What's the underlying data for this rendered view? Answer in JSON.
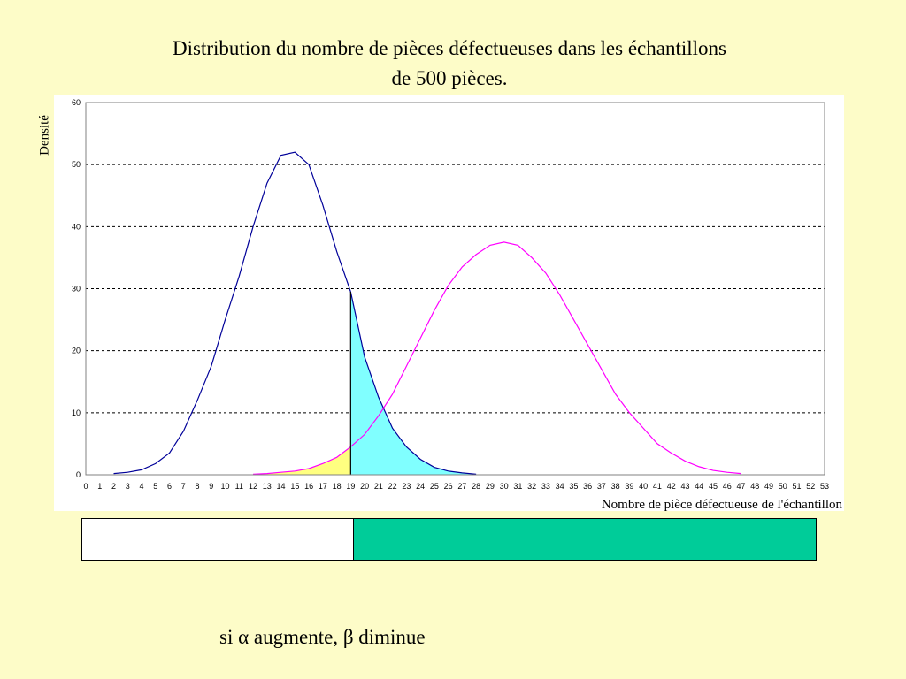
{
  "page": {
    "title_line1": "Distribution du nombre de pièces défectueuses dans les échantillons",
    "title_line2": "de 500 pièces.",
    "footnote_prefix": "si ",
    "footnote_alpha": "α",
    "footnote_middle": " augmente, ",
    "footnote_beta": "β",
    "footnote_suffix": " diminue"
  },
  "colors": {
    "background": "#fdfcc8",
    "curve_h0": "#000099",
    "curve_h1": "#ff00ff",
    "alpha_fill": "#80ffff",
    "beta_fill": "#ffff80",
    "band_accept": "#ffffff",
    "band_reject": "#00cc99",
    "grid": "#000000"
  },
  "chart_data": {
    "type": "line",
    "xlabel": "Nombre de pièce défectueuse de l'échantillon",
    "ylabel": "Densité",
    "xlim": [
      0,
      53
    ],
    "ylim": [
      0,
      60
    ],
    "x_ticks": [
      0,
      1,
      2,
      3,
      4,
      5,
      6,
      7,
      8,
      9,
      10,
      11,
      12,
      13,
      14,
      15,
      16,
      17,
      18,
      19,
      20,
      21,
      22,
      23,
      24,
      25,
      26,
      27,
      28,
      29,
      30,
      31,
      32,
      33,
      34,
      35,
      36,
      37,
      38,
      39,
      40,
      41,
      42,
      43,
      44,
      45,
      46,
      47,
      48,
      49,
      50,
      51,
      52,
      53
    ],
    "y_ticks": [
      0,
      10,
      20,
      30,
      40,
      50,
      60
    ],
    "grid": "horizontal dashed",
    "critical_value": 19,
    "series": [
      {
        "color": "#000099",
        "x": [
          2,
          3,
          4,
          5,
          6,
          7,
          8,
          9,
          10,
          11,
          12,
          13,
          14,
          15,
          16,
          17,
          18,
          19,
          20,
          21,
          22,
          23,
          24,
          25,
          26,
          27,
          28
        ],
        "values": [
          0.2,
          0.4,
          0.8,
          1.8,
          3.5,
          7,
          12,
          17.5,
          25,
          32,
          40,
          47,
          51.5,
          52,
          50,
          43.5,
          36,
          29.5,
          19,
          12.5,
          7.5,
          4.5,
          2.5,
          1.2,
          0.6,
          0.3,
          0.1
        ]
      },
      {
        "color": "#ff00ff",
        "x": [
          12,
          13,
          14,
          15,
          16,
          17,
          18,
          19,
          20,
          21,
          22,
          23,
          24,
          25,
          26,
          27,
          28,
          29,
          30,
          31,
          32,
          33,
          34,
          35,
          36,
          37,
          38,
          39,
          40,
          41,
          42,
          43,
          44,
          45,
          46,
          47
        ],
        "values": [
          0.1,
          0.2,
          0.4,
          0.6,
          1,
          1.8,
          2.8,
          4.5,
          6.5,
          9.5,
          13,
          17.5,
          22,
          26.5,
          30.5,
          33.5,
          35.5,
          37,
          37.5,
          37,
          35,
          32.5,
          29,
          25,
          21,
          17,
          13,
          10,
          7.5,
          5,
          3.5,
          2.2,
          1.3,
          0.7,
          0.4,
          0.2
        ]
      }
    ]
  }
}
